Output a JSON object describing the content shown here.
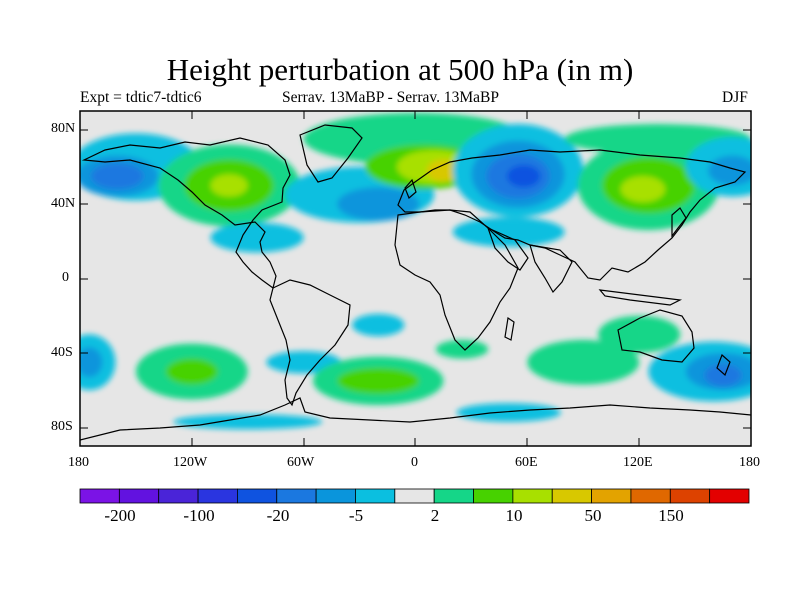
{
  "title": "Height perturbation at 500 hPa (in m)",
  "subtitle_left": "Expt = tdtic7-tdtic6",
  "subtitle_center": "Serrav.   13MaBP - Serrav.   13MaBP",
  "subtitle_right": "DJF",
  "colors": {
    "background_field": "#e6e6e6",
    "frame": "#000000",
    "land_outline": "#000000"
  },
  "map": {
    "projection": "cylindrical equidistant",
    "lon_range": [
      -180,
      180
    ],
    "lat_range": [
      -90,
      90
    ],
    "lat_ticks": [
      "80N",
      "40N",
      "0",
      "40S",
      "80S"
    ],
    "lon_ticks": [
      "180",
      "120W",
      "60W",
      "0",
      "60E",
      "120E",
      "180"
    ]
  },
  "colorbar": {
    "colors": [
      "#7b13e6",
      "#6212e0",
      "#4a24d8",
      "#2a35e0",
      "#0f53e0",
      "#1b78e0",
      "#0a95dc",
      "#0bbfe0",
      "#e6e6e6",
      "#15d688",
      "#47d200",
      "#a8e000",
      "#d8c800",
      "#e3a300",
      "#e06800",
      "#dd4200",
      "#e30000"
    ],
    "labels": [
      "-200",
      "-100",
      "-20",
      "-5",
      "2",
      "10",
      "50",
      "150"
    ]
  },
  "field_blobs": [
    {
      "lon": -150,
      "lat": 60,
      "level": -1,
      "r": [
        35,
        18
      ]
    },
    {
      "lon": -160,
      "lat": 55,
      "level": -2,
      "r": [
        22,
        11
      ]
    },
    {
      "lon": -160,
      "lat": 55,
      "level": -3,
      "r": [
        14,
        7
      ]
    },
    {
      "lon": -100,
      "lat": 50,
      "level": 1,
      "r": [
        38,
        22
      ]
    },
    {
      "lon": -100,
      "lat": 50,
      "level": 2,
      "r": [
        24,
        14
      ]
    },
    {
      "lon": -100,
      "lat": 50,
      "level": 3,
      "r": [
        10,
        6
      ]
    },
    {
      "lon": -30,
      "lat": 45,
      "level": -1,
      "r": [
        40,
        15
      ]
    },
    {
      "lon": -20,
      "lat": 40,
      "level": -2,
      "r": [
        22,
        9
      ]
    },
    {
      "lon": -85,
      "lat": 22,
      "level": -1,
      "r": [
        25,
        8
      ]
    },
    {
      "lon": 0,
      "lat": 75,
      "level": 1,
      "r": [
        60,
        14
      ]
    },
    {
      "lon": 5,
      "lat": 60,
      "level": 2,
      "r": [
        32,
        12
      ]
    },
    {
      "lon": 10,
      "lat": 60,
      "level": 3,
      "r": [
        20,
        9
      ]
    },
    {
      "lon": 15,
      "lat": 58,
      "level": 4,
      "r": [
        9,
        6
      ]
    },
    {
      "lon": 50,
      "lat": 25,
      "level": -1,
      "r": [
        30,
        8
      ]
    },
    {
      "lon": 55,
      "lat": 58,
      "level": -1,
      "r": [
        35,
        25
      ]
    },
    {
      "lon": 55,
      "lat": 56,
      "level": -2,
      "r": [
        25,
        18
      ]
    },
    {
      "lon": 55,
      "lat": 55,
      "level": -3,
      "r": [
        17,
        12
      ]
    },
    {
      "lon": 58,
      "lat": 55,
      "level": -4,
      "r": [
        9,
        6
      ]
    },
    {
      "lon": 125,
      "lat": 50,
      "level": 1,
      "r": [
        38,
        24
      ]
    },
    {
      "lon": 125,
      "lat": 50,
      "level": 2,
      "r": [
        25,
        15
      ]
    },
    {
      "lon": 122,
      "lat": 48,
      "level": 3,
      "r": [
        12,
        7
      ]
    },
    {
      "lon": 130,
      "lat": 75,
      "level": 1,
      "r": [
        50,
        8
      ]
    },
    {
      "lon": 170,
      "lat": 60,
      "level": -1,
      "r": [
        25,
        16
      ]
    },
    {
      "lon": 170,
      "lat": 58,
      "level": -2,
      "r": [
        13,
        8
      ]
    },
    {
      "lon": -175,
      "lat": -45,
      "level": -1,
      "r": [
        14,
        15
      ]
    },
    {
      "lon": -175,
      "lat": -45,
      "level": -2,
      "r": [
        7,
        8
      ]
    },
    {
      "lon": -120,
      "lat": -50,
      "level": 1,
      "r": [
        30,
        15
      ]
    },
    {
      "lon": -120,
      "lat": -50,
      "level": 2,
      "r": [
        14,
        7
      ]
    },
    {
      "lon": -60,
      "lat": -45,
      "level": -1,
      "r": [
        20,
        6
      ]
    },
    {
      "lon": -20,
      "lat": -55,
      "level": 1,
      "r": [
        35,
        13
      ]
    },
    {
      "lon": -20,
      "lat": -55,
      "level": 2,
      "r": [
        22,
        7
      ]
    },
    {
      "lon": -20,
      "lat": -25,
      "level": -1,
      "r": [
        14,
        6
      ]
    },
    {
      "lon": 25,
      "lat": -38,
      "level": 1,
      "r": [
        14,
        5
      ]
    },
    {
      "lon": 90,
      "lat": -45,
      "level": 1,
      "r": [
        30,
        12
      ]
    },
    {
      "lon": 120,
      "lat": -30,
      "level": 1,
      "r": [
        22,
        10
      ]
    },
    {
      "lon": 160,
      "lat": -50,
      "level": -1,
      "r": [
        35,
        16
      ]
    },
    {
      "lon": 165,
      "lat": -50,
      "level": -2,
      "r": [
        20,
        10
      ]
    },
    {
      "lon": 165,
      "lat": -52,
      "level": -3,
      "r": [
        10,
        6
      ]
    },
    {
      "lon": 50,
      "lat": -72,
      "level": -1,
      "r": [
        28,
        5
      ]
    },
    {
      "lon": -90,
      "lat": -77,
      "level": -1,
      "r": [
        40,
        4
      ]
    }
  ]
}
